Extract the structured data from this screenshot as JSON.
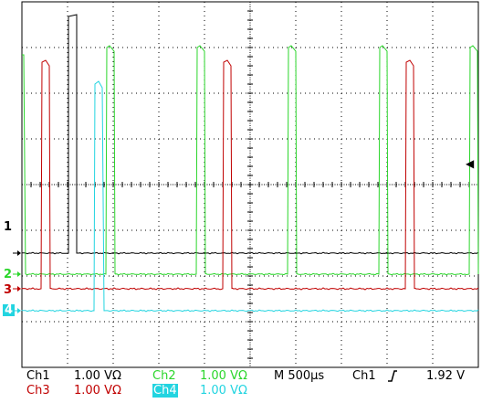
{
  "scope": {
    "colors": {
      "background": "#ffffff",
      "grid": "#000000",
      "ch1": "#000000",
      "ch2": "#2bd62b",
      "ch3": "#c00000",
      "ch4": "#22d4e0",
      "ch4_label_bg": "#22d4e0",
      "ch4_label_text": "#ffffff"
    },
    "channel_markers": [
      {
        "id": "ch1",
        "label": "1"
      },
      {
        "id": "ch2",
        "label": "2"
      },
      {
        "id": "ch3",
        "label": "3"
      },
      {
        "id": "ch4",
        "label": "4"
      }
    ],
    "trigger_level_marker": "◀",
    "readout": {
      "ch1": {
        "name": "Ch1",
        "scale": "1.00 VΩ"
      },
      "ch2": {
        "name": "Ch2",
        "scale": "1.00 VΩ"
      },
      "ch3": {
        "name": "Ch3",
        "scale": "1.00 VΩ"
      },
      "ch4": {
        "name": "Ch4",
        "scale": "1.00 VΩ"
      },
      "timebase": "M 500µs",
      "trigger_source": "Ch1",
      "trigger_slope_icon": "rising-edge-icon",
      "trigger_level": "1.92 V"
    }
  }
}
